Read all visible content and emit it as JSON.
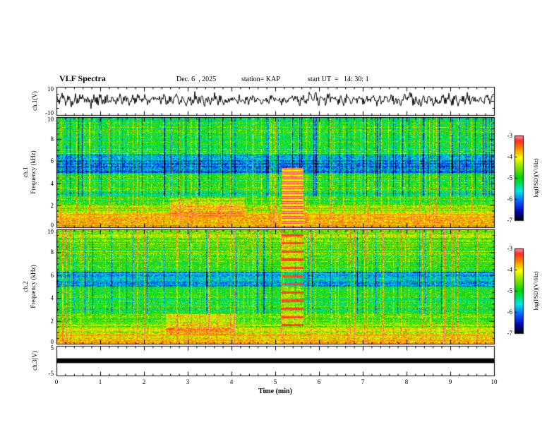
{
  "header": {
    "title": "VLF Spectra",
    "date": "Dec. 6  , 2025",
    "station": "station= KAP",
    "start_ut": "start UT  =   14: 30: 1"
  },
  "xaxis": {
    "label": "Time (min)",
    "min": 0,
    "max": 10,
    "major_ticks": [
      0,
      1,
      2,
      3,
      4,
      5,
      6,
      7,
      8,
      9,
      10
    ],
    "minor_step": 0.2
  },
  "colorbar": {
    "label": "log(PSD)(V²/Hz)",
    "min": -7,
    "max": -3,
    "ticks": [
      -3,
      -4,
      -5,
      -6,
      -7
    ],
    "stops": [
      {
        "t": 0.0,
        "c": "#000014"
      },
      {
        "t": 0.1,
        "c": "#0000b4"
      },
      {
        "t": 0.22,
        "c": "#0064ff"
      },
      {
        "t": 0.34,
        "c": "#00e6e6"
      },
      {
        "t": 0.5,
        "c": "#00d200"
      },
      {
        "t": 0.64,
        "c": "#96e600"
      },
      {
        "t": 0.74,
        "c": "#ffff00"
      },
      {
        "t": 0.86,
        "c": "#ff7d00"
      },
      {
        "t": 0.94,
        "c": "#ff2828"
      },
      {
        "t": 1.0,
        "c": "#ff9696"
      }
    ]
  },
  "chart_data": [
    {
      "type": "line",
      "name": "ch1_voltage_waveform",
      "ylabel": "ch.1(V)",
      "ylim": [
        -10,
        10
      ],
      "yticks": [
        10,
        -10
      ],
      "xlim": [
        0,
        10
      ],
      "line_color": "#000000",
      "mean_v": [
        1,
        0.5,
        1.5,
        1,
        0.5,
        1,
        1.5,
        1,
        0.5,
        1,
        1
      ],
      "amp_v": [
        3.5,
        4.5,
        3,
        4.5,
        3.5,
        3,
        4,
        3.5,
        4.5,
        4,
        3.5
      ],
      "seed": 5
    },
    {
      "type": "heatmap",
      "name": "ch1_spectrogram",
      "ylabel_lines": [
        "ch.1",
        "Frequency (kHz)"
      ],
      "ylim": [
        0,
        10
      ],
      "yticks": [
        10,
        8,
        6,
        4,
        2,
        0
      ],
      "xlim": [
        0,
        10
      ],
      "zlim": [
        -7,
        -3
      ],
      "zlabel": "log(PSD)(V²/Hz)",
      "features": {
        "seed": 11,
        "base_level": -5.0,
        "pixel_noise": 0.5,
        "row_stripe_amp": 0.35,
        "low_freq": {
          "below_khz": 2.6,
          "boost": 1.35
        },
        "bands": [
          {
            "f0": 4.9,
            "f1": 6.6,
            "delta": -1.0
          },
          {
            "f0": 2.85,
            "f1": 3.15,
            "delta": -0.55
          },
          {
            "f0": 9.55,
            "f1": 10.0,
            "delta": -0.35
          }
        ],
        "lines_khz": [
          0.3,
          0.75,
          1.15
        ],
        "line_value": -3.7,
        "blob": {
          "t0": 2.6,
          "t1": 4.3,
          "f0": 0.9,
          "f1": 2.6,
          "delta": 0.75
        },
        "streaks": {
          "density": 0.11,
          "min": 0.5,
          "max": 1.7
        },
        "dark_streaks": {
          "density": 0.07,
          "delta": -1.4,
          "f_min": 2.8
        },
        "disturbance": {
          "t0": 5.15,
          "t1": 5.65,
          "f0": 0,
          "f1": 5.4,
          "delta": 1.5,
          "stripe_amp": 0.7
        }
      }
    },
    {
      "type": "heatmap",
      "name": "ch2_spectrogram",
      "ylabel_lines": [
        "ch.2",
        "Frequency (kHz)"
      ],
      "ylim": [
        0,
        10
      ],
      "yticks": [
        10,
        8,
        6,
        4,
        2,
        0
      ],
      "xlim": [
        0,
        10
      ],
      "zlim": [
        -7,
        -3
      ],
      "zlabel": "log(PSD)(V²/Hz)",
      "features": {
        "seed": 29,
        "base_level": -5.0,
        "pixel_noise": 0.5,
        "row_stripe_amp": 0.35,
        "low_freq": {
          "below_khz": 2.6,
          "boost": 1.3
        },
        "high_freq": {
          "above_khz": 7.0,
          "boost": 0.55
        },
        "bands": [
          {
            "f0": 5.0,
            "f1": 6.3,
            "delta": -0.85
          },
          {
            "f0": 2.85,
            "f1": 3.1,
            "delta": -0.4
          }
        ],
        "lines_khz": [
          0.3,
          0.7
        ],
        "line_value": -3.7,
        "blob": {
          "t0": 2.5,
          "t1": 4.1,
          "f0": 0.8,
          "f1": 2.6,
          "delta": 0.7
        },
        "streaks": {
          "density": 0.13,
          "min": 0.5,
          "max": 1.7
        },
        "streak_high_extra": {
          "above_khz": 7.0,
          "extra": 0.5
        },
        "dark_streaks": {
          "density": 0.05,
          "delta": -1.2,
          "f_min": 2.6
        },
        "disturbance": {
          "t0": 5.15,
          "t1": 5.65,
          "f0": 1.5,
          "f1": 9.6,
          "delta": 1.0,
          "harmonic_spacing_khz": 0.72,
          "harmonic_width_khz": 0.2,
          "harmonic_value": -3.3
        }
      }
    },
    {
      "type": "line",
      "name": "ch3_voltage_waveform",
      "ylabel": "ch.3(V)",
      "ylim": [
        -5,
        5
      ],
      "yticks": [
        5,
        -5
      ],
      "xlim": [
        0,
        10
      ],
      "constant_v": 0,
      "bar_thickness_v": 1.6,
      "line_color": "#000000"
    }
  ]
}
